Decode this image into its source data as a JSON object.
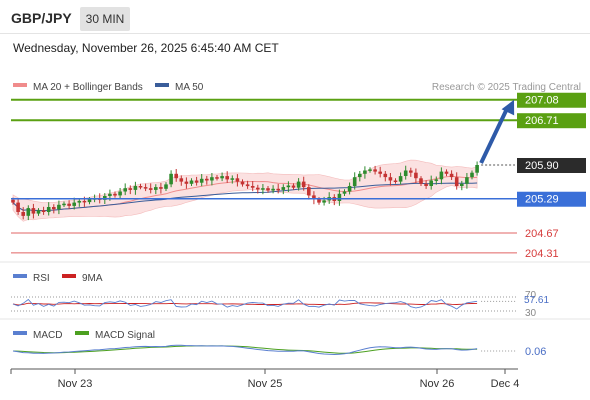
{
  "header": {
    "symbol": "GBP/JPY",
    "timeframe": "30 MIN",
    "datetime": "Wednesday, November 26, 2025 6:45:40 AM CET"
  },
  "legend": {
    "ma20_label": "MA 20 + Bollinger Bands",
    "ma50_label": "MA 50",
    "credit": "Research © 2025 Trading Central",
    "ma20_color": "#f08c8c",
    "ma50_color": "#3a5d9a"
  },
  "colors": {
    "bull_candle": "#2e8b2e",
    "bear_candle": "#c43333",
    "resistance": "#5aa012",
    "pivot": "#3a6fd8",
    "support": "#e06565",
    "last_price_bg": "#2b2b2b",
    "arrow": "#2e5aa8",
    "band_fill": "#fbdede"
  },
  "chart_data": [
    {
      "type": "candlestick",
      "title": "GBP/JPY 30 MIN",
      "x_ticks": [
        "Nov 23",
        "Nov 25",
        "Nov 26",
        "Dec 4"
      ],
      "price_range": [
        204.1,
        207.25
      ],
      "last_price": 205.9,
      "levels": [
        {
          "value": 207.08,
          "kind": "resistance",
          "label": "207.08"
        },
        {
          "value": 206.71,
          "kind": "resistance",
          "label": "206.71"
        },
        {
          "value": 205.29,
          "kind": "pivot",
          "label": "205.29"
        },
        {
          "value": 204.67,
          "kind": "support",
          "label": "204.67"
        },
        {
          "value": 204.31,
          "kind": "support",
          "label": "204.31"
        }
      ],
      "forecast_arrow": {
        "from": 205.9,
        "to": 207.08
      },
      "close_series": [
        205.22,
        205.05,
        204.98,
        205.12,
        205.02,
        205.08,
        205.05,
        205.14,
        205.1,
        205.18,
        205.2,
        205.16,
        205.22,
        205.25,
        205.23,
        205.28,
        205.3,
        205.27,
        205.34,
        205.38,
        205.35,
        205.42,
        205.48,
        205.45,
        205.52,
        205.5,
        205.48,
        205.45,
        205.5,
        205.47,
        205.55,
        205.74,
        205.66,
        205.6,
        205.56,
        205.62,
        205.58,
        205.65,
        205.62,
        205.68,
        205.66,
        205.7,
        205.64,
        205.66,
        205.6,
        205.55,
        205.52,
        205.49,
        205.46,
        205.48,
        205.44,
        205.47,
        205.45,
        205.5,
        205.53,
        205.49,
        205.6,
        205.5,
        205.35,
        205.28,
        205.22,
        205.26,
        205.32,
        205.25,
        205.38,
        205.42,
        205.52,
        205.68,
        205.74,
        205.8,
        205.82,
        205.78,
        205.74,
        205.68,
        205.62,
        205.6,
        205.7,
        205.8,
        205.76,
        205.66,
        205.56,
        205.52,
        205.62,
        205.64,
        205.78,
        205.74,
        205.68,
        205.52,
        205.56,
        205.68,
        205.76,
        205.9
      ]
    },
    {
      "type": "line",
      "title": "RSI",
      "series": [
        {
          "name": "RSI",
          "color": "#5a7fd0",
          "last": 57.61
        },
        {
          "name": "9MA",
          "color": "#cc2222"
        }
      ],
      "levels": [
        70,
        30
      ],
      "value_label": "57.61"
    },
    {
      "type": "line",
      "title": "MACD",
      "series": [
        {
          "name": "MACD",
          "color": "#5a7fd0",
          "last": 0.06
        },
        {
          "name": "MACD Signal",
          "color": "#4ca020"
        }
      ],
      "value_label": "0.06"
    }
  ],
  "rsi_panel": {
    "rsi_label": "RSI",
    "ma_label": "9MA",
    "level_70": "70",
    "level_30": "30",
    "value": "57.61",
    "rsi_color": "#5a7fd0",
    "ma_color": "#cc2222"
  },
  "macd_panel": {
    "macd_label": "MACD",
    "signal_label": "MACD Signal",
    "value": "0.06",
    "macd_color": "#5a7fd0",
    "signal_color": "#4ca020"
  }
}
